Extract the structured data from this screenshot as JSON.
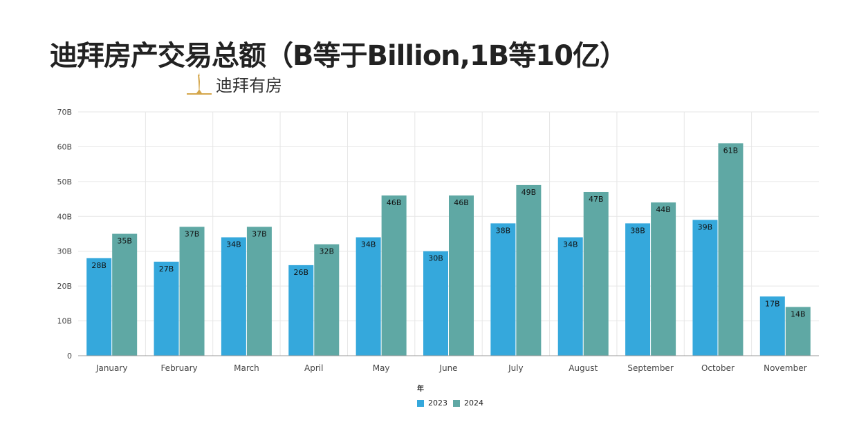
{
  "header": {
    "title": "迪拜房产交易总额（B等于Billion,1B等10亿）",
    "brand_name": "迪拜有房"
  },
  "colors": {
    "series_2023": "#35a8dc",
    "series_2024": "#5fa8a4",
    "logo_gold": "#d4a64a",
    "grid": "#e6e6e6",
    "axis": "#999999"
  },
  "legend": {
    "title": "年",
    "items": [
      {
        "label": "2023",
        "color": "#35a8dc"
      },
      {
        "label": "2024",
        "color": "#5fa8a4"
      }
    ]
  },
  "chart_data": {
    "type": "bar",
    "title": "迪拜房产交易总额（B等于Billion,1B等10亿）",
    "xlabel": "",
    "ylabel": "",
    "legend_title": "年",
    "legend_position": "bottom",
    "grid": true,
    "categories": [
      "January",
      "February",
      "March",
      "April",
      "May",
      "June",
      "July",
      "August",
      "September",
      "October",
      "November"
    ],
    "series": [
      {
        "name": "2023",
        "values": [
          28,
          27,
          34,
          26,
          34,
          30,
          38,
          34,
          38,
          39,
          17
        ],
        "labels": [
          "28B",
          "27B",
          "34B",
          "26B",
          "34B",
          "30B",
          "38B",
          "34B",
          "38B",
          "39B",
          "17B"
        ]
      },
      {
        "name": "2024",
        "values": [
          35,
          37,
          37,
          32,
          46,
          46,
          49,
          47,
          44,
          61,
          14
        ],
        "labels": [
          "35B",
          "37B",
          "37B",
          "32B",
          "46B",
          "46B",
          "49B",
          "47B",
          "44B",
          "61B",
          "14B"
        ]
      }
    ],
    "ylim": [
      0,
      70
    ],
    "yticks": [
      0,
      10,
      20,
      30,
      40,
      50,
      60,
      70
    ],
    "ytick_labels": [
      "0",
      "10B",
      "20B",
      "30B",
      "40B",
      "50B",
      "60B",
      "70B"
    ]
  }
}
